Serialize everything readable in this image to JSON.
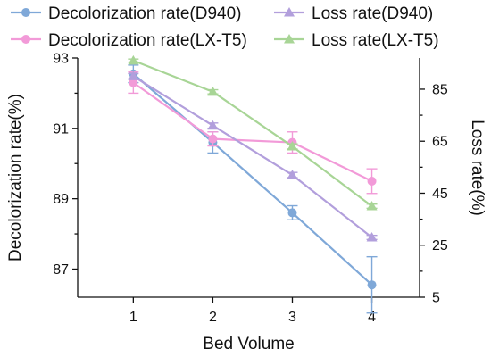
{
  "chart_data": {
    "type": "line",
    "title": "",
    "xlabel": "Bed Volume",
    "ylabel_left": "Decolorization rate(%)",
    "ylabel_right": "Loss rate(%)",
    "x": [
      1,
      2,
      3,
      4
    ],
    "x_ticks": [
      "1",
      "2",
      "3",
      "4"
    ],
    "xlim": [
      0.3,
      4.6
    ],
    "ylim_left": [
      86.2,
      93
    ],
    "ylim_right": [
      5,
      97
    ],
    "y_ticks_left": [
      "87",
      "89",
      "91",
      "93"
    ],
    "y_ticks_right": [
      "5",
      "25",
      "45",
      "65",
      "85"
    ],
    "grid": false,
    "legend_position": "top",
    "series": [
      {
        "name": "Decolorization rate(D940)",
        "axis": "left",
        "marker": "circle",
        "color": "#7fa8d8",
        "values": [
          92.55,
          90.6,
          88.6,
          86.55
        ],
        "errors": [
          0.25,
          0.3,
          0.2,
          0.8
        ]
      },
      {
        "name": "Decolorization rate(LX-T5)",
        "axis": "left",
        "marker": "circle",
        "color": "#f29ad8",
        "values": [
          92.3,
          90.7,
          90.6,
          89.5
        ],
        "errors": [
          0.3,
          0.2,
          0.3,
          0.35
        ]
      },
      {
        "name": "Loss rate(D940)",
        "axis": "right",
        "marker": "triangle",
        "color": "#b29fdc",
        "values": [
          90,
          71,
          52,
          28
        ],
        "errors": [
          1,
          1,
          1,
          0.8
        ]
      },
      {
        "name": "Loss rate(LX-T5)",
        "axis": "right",
        "marker": "triangle",
        "color": "#a8d596",
        "values": [
          96,
          84,
          63,
          40
        ],
        "errors": [
          0.6,
          0.8,
          1,
          0.8
        ]
      }
    ]
  }
}
